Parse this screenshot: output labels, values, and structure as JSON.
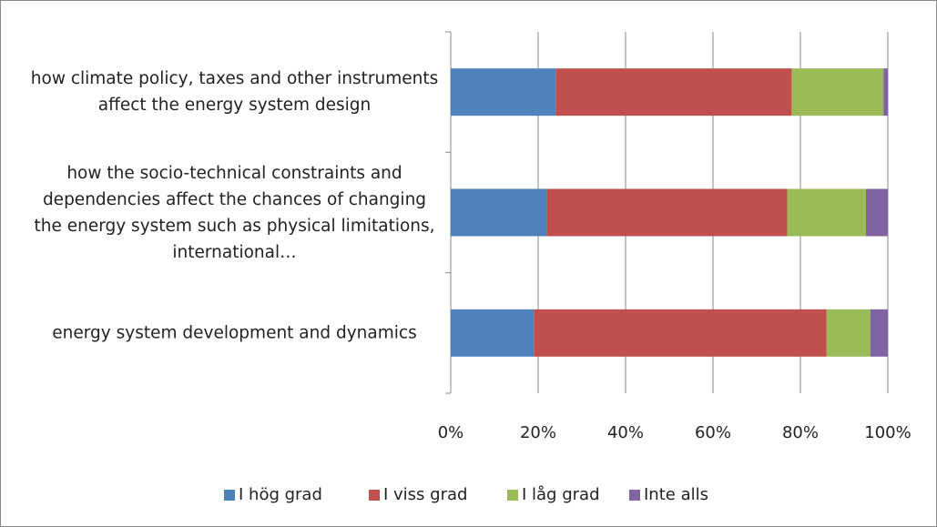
{
  "chart_data": {
    "type": "stacked-bar-horizontal",
    "categories": [
      "how climate policy, taxes and other instruments affect the energy system design",
      "how the socio-technical constraints and dependencies affect the chances of changing the energy system such as physical limitations, international…",
      "energy system development and dynamics"
    ],
    "series": [
      {
        "name": "I hög grad",
        "color": "#4f81bd",
        "values": [
          24,
          22,
          19
        ]
      },
      {
        "name": "I viss grad",
        "color": "#c0504d",
        "values": [
          54,
          55,
          67
        ]
      },
      {
        "name": "I låg grad",
        "color": "#9bbb59",
        "values": [
          21,
          18,
          10
        ]
      },
      {
        "name": "Inte alls",
        "color": "#8064a2",
        "values": [
          1,
          5,
          4
        ]
      }
    ],
    "xlim": [
      0,
      100
    ],
    "xticks": [
      {
        "value": 0,
        "label": "0%"
      },
      {
        "value": 20,
        "label": "20%"
      },
      {
        "value": 40,
        "label": "40%"
      },
      {
        "value": 60,
        "label": "60%"
      },
      {
        "value": 80,
        "label": "80%"
      },
      {
        "value": 100,
        "label": "100%"
      }
    ],
    "grid": true,
    "legend": "bottom"
  }
}
